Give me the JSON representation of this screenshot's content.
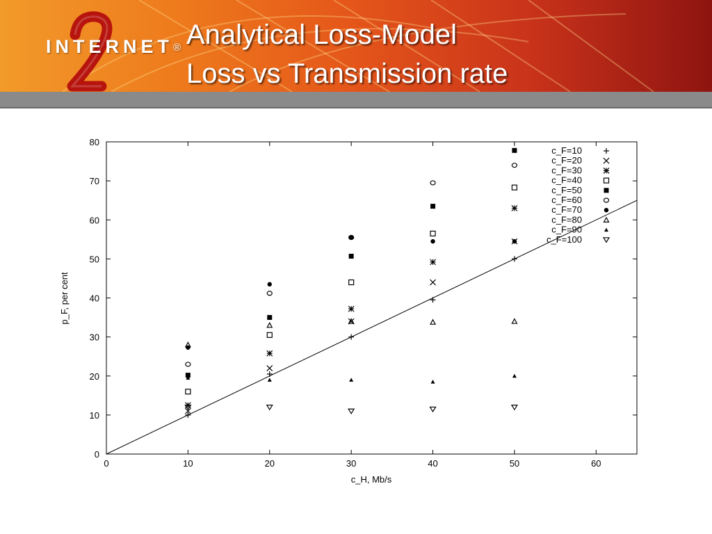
{
  "slide": {
    "title_line1": "Analytical Loss-Model",
    "title_line2": "Loss vs Transmission rate",
    "logo_text": "INTERNET",
    "logo_mark": "2",
    "logo_registered": "®",
    "banner_colors": [
      "#f29a2a",
      "#e4551a",
      "#8e1410"
    ],
    "bar_color": "#8a8a8a"
  },
  "chart_data": {
    "type": "scatter",
    "title": "",
    "xlabel": "c_H, Mb/s",
    "ylabel": "p_F, per cent",
    "xlim": [
      0,
      65
    ],
    "ylim": [
      0,
      80
    ],
    "xticks": [
      0,
      10,
      20,
      30,
      40,
      50,
      60
    ],
    "yticks": [
      0,
      10,
      20,
      30,
      40,
      50,
      60,
      70,
      80
    ],
    "grid": false,
    "legend_position": "top-right",
    "x": [
      10,
      20,
      30,
      40,
      50
    ],
    "series": [
      {
        "name": "c_F=10",
        "marker": "plus",
        "values": [
          10,
          20.5,
          30,
          39.5,
          50
        ]
      },
      {
        "name": "c_F=20",
        "marker": "cross",
        "values": [
          11,
          22,
          34,
          44,
          54.5
        ]
      },
      {
        "name": "c_F=30",
        "marker": "star",
        "values": [
          12.5,
          25.8,
          37.2,
          49.2,
          63
        ]
      },
      {
        "name": "c_F=40",
        "marker": "square-open",
        "values": [
          16,
          30.5,
          44,
          56.5,
          68.3
        ]
      },
      {
        "name": "c_F=50",
        "marker": "square-filled",
        "values": [
          20.2,
          35,
          50.7,
          63.5,
          77.8
        ]
      },
      {
        "name": "c_F=60",
        "marker": "circle-open",
        "values": [
          23,
          41.2,
          55.5,
          69.5,
          74
        ]
      },
      {
        "name": "c_F=70",
        "marker": "circle-filled",
        "values": [
          27.3,
          43.5,
          55.5,
          54.5,
          54.5
        ]
      },
      {
        "name": "c_F=80",
        "marker": "triangle-open",
        "values": [
          28,
          33,
          34,
          33.8,
          34
        ]
      },
      {
        "name": "c_F=90",
        "marker": "triangle-filled",
        "values": [
          19.5,
          19,
          19,
          18.5,
          20
        ]
      },
      {
        "name": "c_F=100",
        "marker": "triangle-down-open",
        "values": [
          12,
          12,
          11,
          11.5,
          12
        ]
      }
    ],
    "reference_line": {
      "from": [
        0,
        0
      ],
      "to": [
        65,
        65
      ]
    }
  }
}
